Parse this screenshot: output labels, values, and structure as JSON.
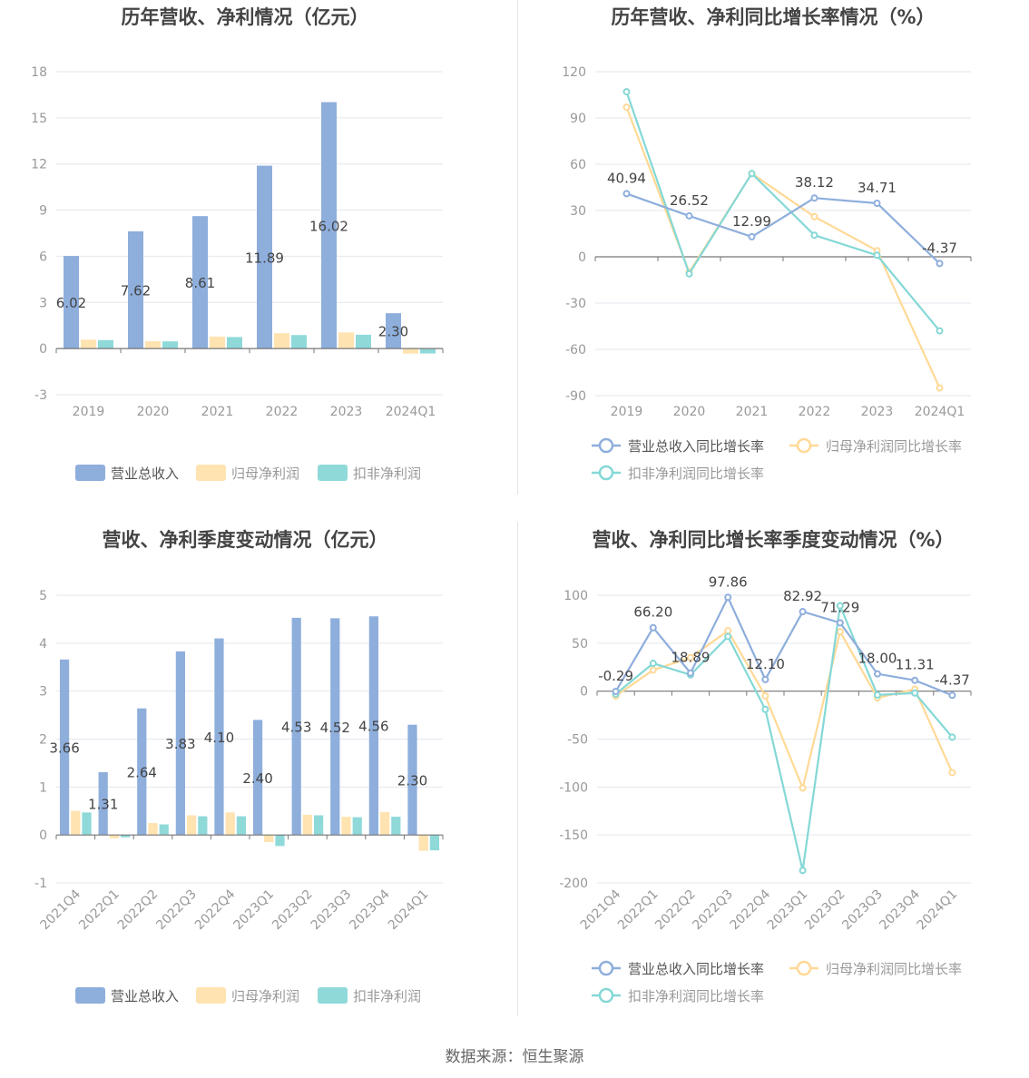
{
  "colors": {
    "revenue": "#8eaedc",
    "net_profit": "#ffe3b0",
    "deducted_profit": "#8fd9d9",
    "line_revenue": "#8eaedc",
    "line_net": "#ffd996",
    "line_deducted": "#84d8d6",
    "axis_text": "#999999",
    "label_text": "#444444",
    "title_text": "#444444",
    "grid": "#e4e6ee"
  },
  "source_text": "数据来源：恒生聚源",
  "chart_data": [
    {
      "type": "bar",
      "title": "历年营收、净利情况（亿元）",
      "categories": [
        "2019",
        "2020",
        "2021",
        "2022",
        "2023",
        "2024Q1"
      ],
      "ylim": [
        -3,
        18
      ],
      "yticks": [
        "-3",
        "0",
        "3",
        "6",
        "9",
        "12",
        "15",
        "18"
      ],
      "series": [
        {
          "name": "营业总收入",
          "values": [
            6.02,
            7.62,
            8.61,
            11.89,
            16.02,
            2.3
          ],
          "labels": [
            "6.02",
            "7.62",
            "8.61",
            "11.89",
            "16.02",
            "2.30"
          ]
        },
        {
          "name": "归母净利润",
          "values": [
            0.58,
            0.48,
            0.78,
            1.0,
            1.05,
            -0.33
          ]
        },
        {
          "name": "扣非净利润",
          "values": [
            0.55,
            0.47,
            0.75,
            0.88,
            0.9,
            -0.32
          ]
        }
      ],
      "legend": "bottom"
    },
    {
      "type": "line",
      "title": "历年营收、净利同比增长率情况（%）",
      "categories": [
        "2019",
        "2020",
        "2021",
        "2022",
        "2023",
        "2024Q1"
      ],
      "ylim": [
        -90,
        120
      ],
      "yticks": [
        "-90",
        "-60",
        "-30",
        "0",
        "30",
        "60",
        "90",
        "120"
      ],
      "series": [
        {
          "name": "营业总收入同比增长率",
          "values": [
            40.94,
            26.52,
            12.99,
            38.12,
            34.71,
            -4.37
          ],
          "labels": [
            "40.94",
            "26.52",
            "12.99",
            "38.12",
            "34.71",
            "-4.37"
          ]
        },
        {
          "name": "归母净利润同比增长率",
          "values": [
            97,
            -10,
            54,
            26,
            4,
            -85
          ]
        },
        {
          "name": "扣非净利润同比增长率",
          "values": [
            107,
            -11,
            54,
            14,
            1,
            -48
          ]
        }
      ],
      "legend": "bottom"
    },
    {
      "type": "bar",
      "title": "营收、净利季度变动情况（亿元）",
      "categories": [
        "2021Q4",
        "2022Q1",
        "2022Q2",
        "2022Q3",
        "2022Q4",
        "2023Q1",
        "2023Q2",
        "2023Q3",
        "2023Q4",
        "2024Q1"
      ],
      "ylim": [
        -1,
        5
      ],
      "yticks": [
        "-1",
        "0",
        "1",
        "2",
        "3",
        "4",
        "5"
      ],
      "series": [
        {
          "name": "营业总收入",
          "values": [
            3.66,
            1.31,
            2.64,
            3.83,
            4.1,
            2.4,
            4.53,
            4.52,
            4.56,
            2.3
          ],
          "labels": [
            "3.66",
            "1.31",
            "2.64",
            "3.83",
            "4.10",
            "2.40",
            "4.53",
            "4.52",
            "4.56",
            "2.30"
          ]
        },
        {
          "name": "归母净利润",
          "values": [
            0.5,
            -0.07,
            0.25,
            0.41,
            0.47,
            -0.15,
            0.42,
            0.38,
            0.48,
            -0.33
          ]
        },
        {
          "name": "扣非净利润",
          "values": [
            0.47,
            -0.05,
            0.22,
            0.39,
            0.39,
            -0.23,
            0.41,
            0.37,
            0.38,
            -0.32
          ]
        }
      ],
      "legend": "bottom"
    },
    {
      "type": "line",
      "title": "营收、净利同比增长率季度变动情况（%）",
      "categories": [
        "2021Q4",
        "2022Q1",
        "2022Q2",
        "2022Q3",
        "2022Q4",
        "2023Q1",
        "2023Q2",
        "2023Q3",
        "2023Q4",
        "2024Q1"
      ],
      "ylim": [
        -200,
        100
      ],
      "yticks": [
        "-200",
        "-150",
        "-100",
        "-50",
        "0",
        "50",
        "100"
      ],
      "series": [
        {
          "name": "营业总收入同比增长率",
          "values": [
            -0.29,
            66.2,
            18.89,
            97.86,
            12.1,
            82.92,
            71.29,
            18.0,
            11.31,
            -4.37
          ],
          "labels": [
            "-0.29",
            "66.20",
            "18.89",
            "97.86",
            "12.10",
            "82.92",
            "71.29",
            "18.00",
            "11.31",
            "-4.37"
          ]
        },
        {
          "name": "归母净利润同比增长率",
          "values": [
            -5,
            22,
            35,
            63,
            -5,
            -101,
            62,
            -7,
            2,
            -85
          ]
        },
        {
          "name": "扣非净利润同比增长率",
          "values": [
            -3,
            29,
            17,
            57,
            -19,
            -187,
            89,
            -4,
            -2,
            -48
          ]
        }
      ],
      "legend": "bottom"
    }
  ]
}
